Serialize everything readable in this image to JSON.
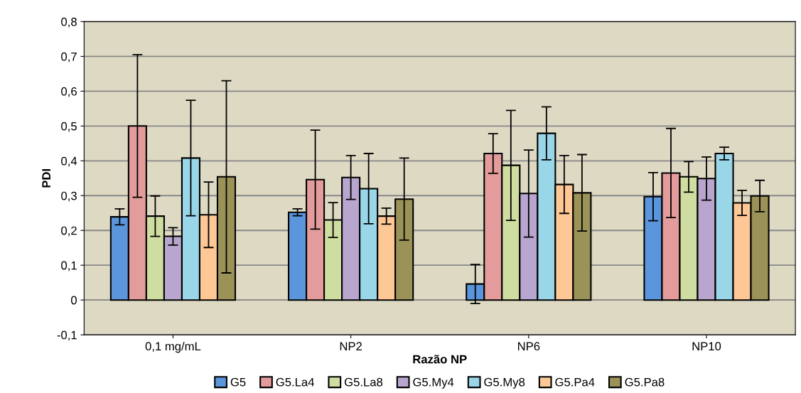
{
  "chart_data": {
    "type": "bar",
    "xlabel": "Razão NP",
    "ylabel": "PDI",
    "categories": [
      "0,1 mg/mL",
      "NP2",
      "NP6",
      "NP10"
    ],
    "series": [
      {
        "name": "G5",
        "color": "#5b96dc",
        "values": [
          0.239,
          0.252,
          0.046,
          0.297
        ],
        "errors": [
          0.023,
          0.01,
          0.056,
          0.069
        ]
      },
      {
        "name": "G5.La4",
        "color": "#e39b9b",
        "values": [
          0.5,
          0.346,
          0.421,
          0.365
        ],
        "errors": [
          0.205,
          0.142,
          0.057,
          0.128
        ]
      },
      {
        "name": "G5.La8",
        "color": "#cfdea0",
        "values": [
          0.241,
          0.23,
          0.387,
          0.354
        ],
        "errors": [
          0.058,
          0.05,
          0.158,
          0.044
        ]
      },
      {
        "name": "G5.My4",
        "color": "#b9a6cf",
        "values": [
          0.183,
          0.352,
          0.306,
          0.349
        ],
        "errors": [
          0.025,
          0.063,
          0.125,
          0.062
        ]
      },
      {
        "name": "G5.My8",
        "color": "#99d6e8",
        "values": [
          0.408,
          0.32,
          0.479,
          0.421
        ],
        "errors": [
          0.166,
          0.101,
          0.076,
          0.018
        ]
      },
      {
        "name": "G5.Pa4",
        "color": "#fdc796",
        "values": [
          0.245,
          0.241,
          0.332,
          0.279
        ],
        "errors": [
          0.094,
          0.023,
          0.083,
          0.036
        ]
      },
      {
        "name": "G5.Pa8",
        "color": "#9b9258",
        "values": [
          0.354,
          0.29,
          0.308,
          0.299
        ],
        "errors": [
          0.276,
          0.118,
          0.11,
          0.045
        ]
      }
    ],
    "ylim": [
      -0.1,
      0.8
    ],
    "yticks": [
      {
        "value": -0.1,
        "label": "-0,1"
      },
      {
        "value": 0,
        "label": "0"
      },
      {
        "value": 0.1,
        "label": "0,1"
      },
      {
        "value": 0.2,
        "label": "0,2"
      },
      {
        "value": 0.3,
        "label": "0,3"
      },
      {
        "value": 0.4,
        "label": "0,4"
      },
      {
        "value": 0.5,
        "label": "0,5"
      },
      {
        "value": 0.6,
        "label": "0,6"
      },
      {
        "value": 0.7,
        "label": "0,7"
      },
      {
        "value": 0.8,
        "label": "0,8"
      }
    ],
    "grid": "y",
    "legend": "bottom"
  }
}
